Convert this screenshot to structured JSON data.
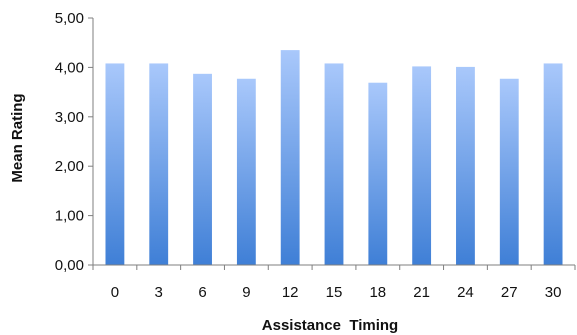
{
  "chart_data": {
    "type": "bar",
    "title": "",
    "xlabel": "Assistance  Timing",
    "ylabel": "Mean Rating",
    "categories": [
      "0",
      "3",
      "6",
      "9",
      "12",
      "15",
      "18",
      "21",
      "24",
      "27",
      "30"
    ],
    "values": [
      4.08,
      4.08,
      3.87,
      3.77,
      4.35,
      4.08,
      3.69,
      4.02,
      4.01,
      3.77,
      4.08
    ],
    "ylim": [
      0,
      5
    ],
    "yticks": [
      0,
      1,
      2,
      3,
      4,
      5
    ],
    "ytick_labels": [
      "0,00",
      "1,00",
      "2,00",
      "3,00",
      "4,00",
      "5,00"
    ],
    "grid": false,
    "legend": "none",
    "bar_color_top": "#a9c8fb",
    "bar_color_bottom": "#3f7fd6",
    "axis_color": "#7f7f7f"
  }
}
